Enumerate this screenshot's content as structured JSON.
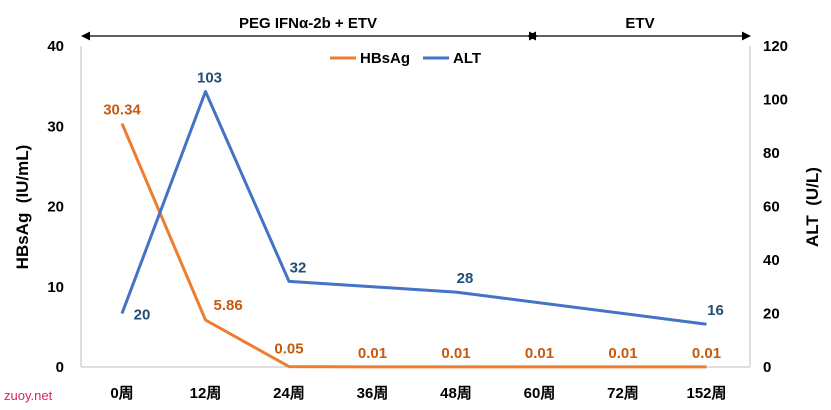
{
  "chart_data": {
    "type": "line",
    "categories": [
      "0周",
      "12周",
      "24周",
      "36周",
      "48周",
      "60周",
      "72周",
      "152周"
    ],
    "series": [
      {
        "name": "HBsAg",
        "axis": "left",
        "color": "#ed7d31",
        "label_color": "#c55a11",
        "values": [
          30.34,
          5.86,
          0.05,
          0.01,
          0.01,
          0.01,
          0.01,
          0.01
        ],
        "data_labels": [
          {
            "index": 0,
            "text": "30.34"
          },
          {
            "index": 1,
            "text": "5.86"
          },
          {
            "index": 2,
            "text": "0.05"
          },
          {
            "index": 3,
            "text": "0.01"
          },
          {
            "index": 4,
            "text": "0.01"
          },
          {
            "index": 5,
            "text": "0.01"
          },
          {
            "index": 6,
            "text": "0.01"
          },
          {
            "index": 7,
            "text": "0.01"
          }
        ]
      },
      {
        "name": "ALT",
        "axis": "right",
        "color": "#4472c4",
        "label_color": "#1f4e79",
        "values": [
          20,
          103,
          32,
          null,
          28,
          null,
          null,
          16
        ],
        "data_labels": [
          {
            "index": 0,
            "text": "20"
          },
          {
            "index": 1,
            "text": "103"
          },
          {
            "index": 2,
            "text": "32"
          },
          {
            "index": 4,
            "text": "28"
          },
          {
            "index": 7,
            "text": "16"
          }
        ]
      }
    ],
    "y_left": {
      "label": "HBsAg  (IU/mL)",
      "ticks": [
        "0",
        "10",
        "20",
        "30",
        "40"
      ],
      "range": [
        0,
        40
      ]
    },
    "y_right": {
      "label": "ALT  (U/L)",
      "ticks": [
        "0",
        "20",
        "40",
        "60",
        "80",
        "100",
        "120"
      ],
      "range": [
        0,
        120
      ]
    },
    "phases": [
      {
        "label": "PEG IFNα-2b + ETV",
        "from": "0周",
        "to": "60周"
      },
      {
        "label": "ETV",
        "from": "60周",
        "to": "152周"
      }
    ],
    "legend_position": "top-center",
    "grid": false
  },
  "watermark": "zuoy.net"
}
